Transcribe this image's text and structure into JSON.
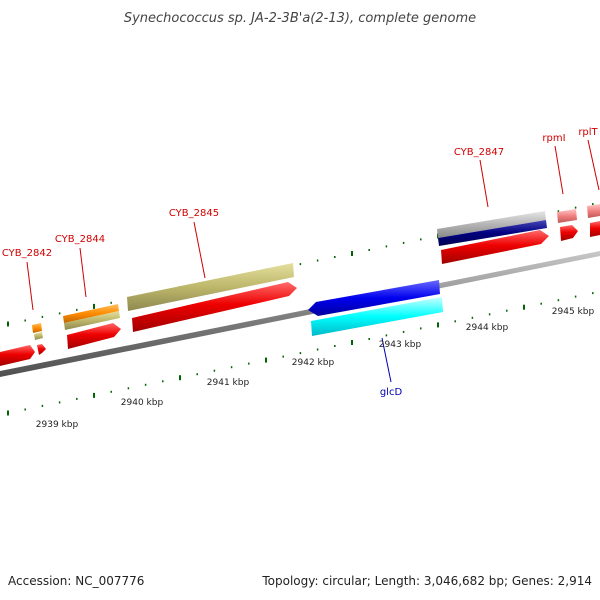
{
  "title": "Synechococcus sp. JA-2-3B'a(2-13), complete genome",
  "footer": {
    "accession": "Accession: NC_007776",
    "summary": "Topology: circular; Length: 3,046,682 bp; Genes: 2,914"
  },
  "scale_labels": [
    "2939 kbp",
    "2940 kbp",
    "2941 kbp",
    "2942 kbp",
    "2943 kbp",
    "2944 kbp",
    "2945 kbp"
  ],
  "gene_labels": {
    "cyb_2842": "CYB_2842",
    "cyb_2844": "CYB_2844",
    "cyb_2845": "CYB_2845",
    "cyb_2847": "CYB_2847",
    "rpmI": "rpmI",
    "rplT": "rplT",
    "glcD": "glcD"
  },
  "colors": {
    "cds": "#ee0000",
    "gene_olive": "#bdb76b",
    "gene_orange": "#ff8c00",
    "gene_gray": "#b4b4b4",
    "gene_navy": "#000080",
    "gene_pink": "#f08080",
    "reverse_cds": "#0000ee",
    "reverse_gene": "#00ffff",
    "backbone": "#808080",
    "tick": "#006400",
    "label_red": "#d00000",
    "label_blue": "#0000b4"
  }
}
